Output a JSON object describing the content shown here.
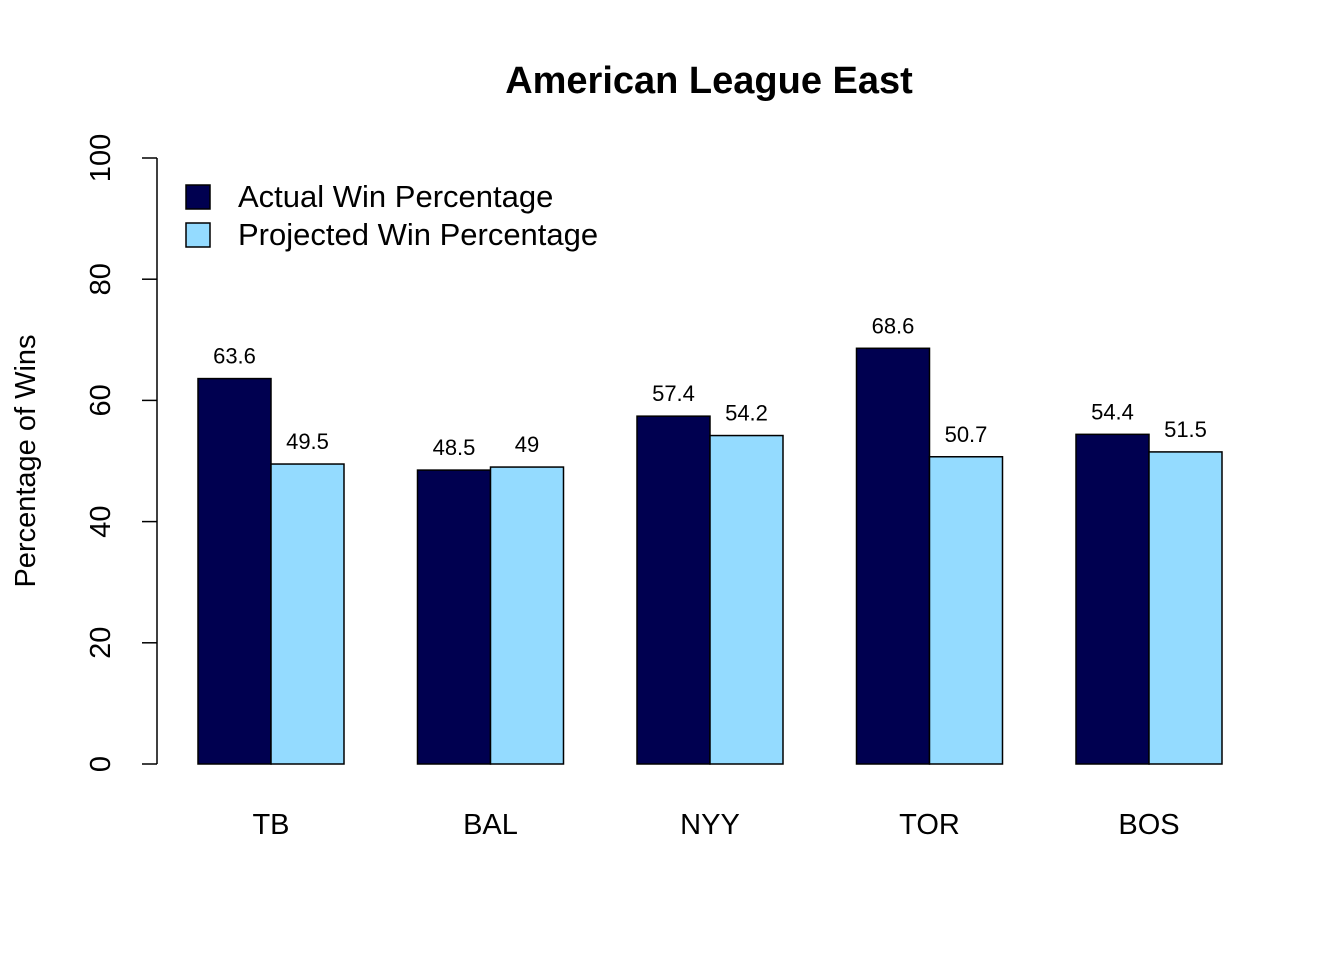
{
  "chart_data": {
    "type": "bar",
    "title": "American League East",
    "xlabel": "",
    "ylabel": "Percentage of Wins",
    "ylim": [
      0,
      100
    ],
    "yticks": [
      0,
      20,
      40,
      60,
      80,
      100
    ],
    "categories": [
      "TB",
      "BAL",
      "NYY",
      "TOR",
      "BOS"
    ],
    "series": [
      {
        "name": "Actual Win Percentage",
        "color": "#000050",
        "values": [
          63.6,
          48.5,
          57.4,
          68.6,
          54.4
        ],
        "labels": [
          "63.6",
          "48.5",
          "57.4",
          "68.6",
          "54.4"
        ]
      },
      {
        "name": "Projected Win Percentage",
        "color": "#94DBFF",
        "values": [
          49.5,
          49,
          54.2,
          50.7,
          51.5
        ],
        "labels": [
          "49.5",
          "49",
          "54.2",
          "50.7",
          "51.5"
        ]
      }
    ],
    "legend_position": "top-left",
    "grid": false
  }
}
